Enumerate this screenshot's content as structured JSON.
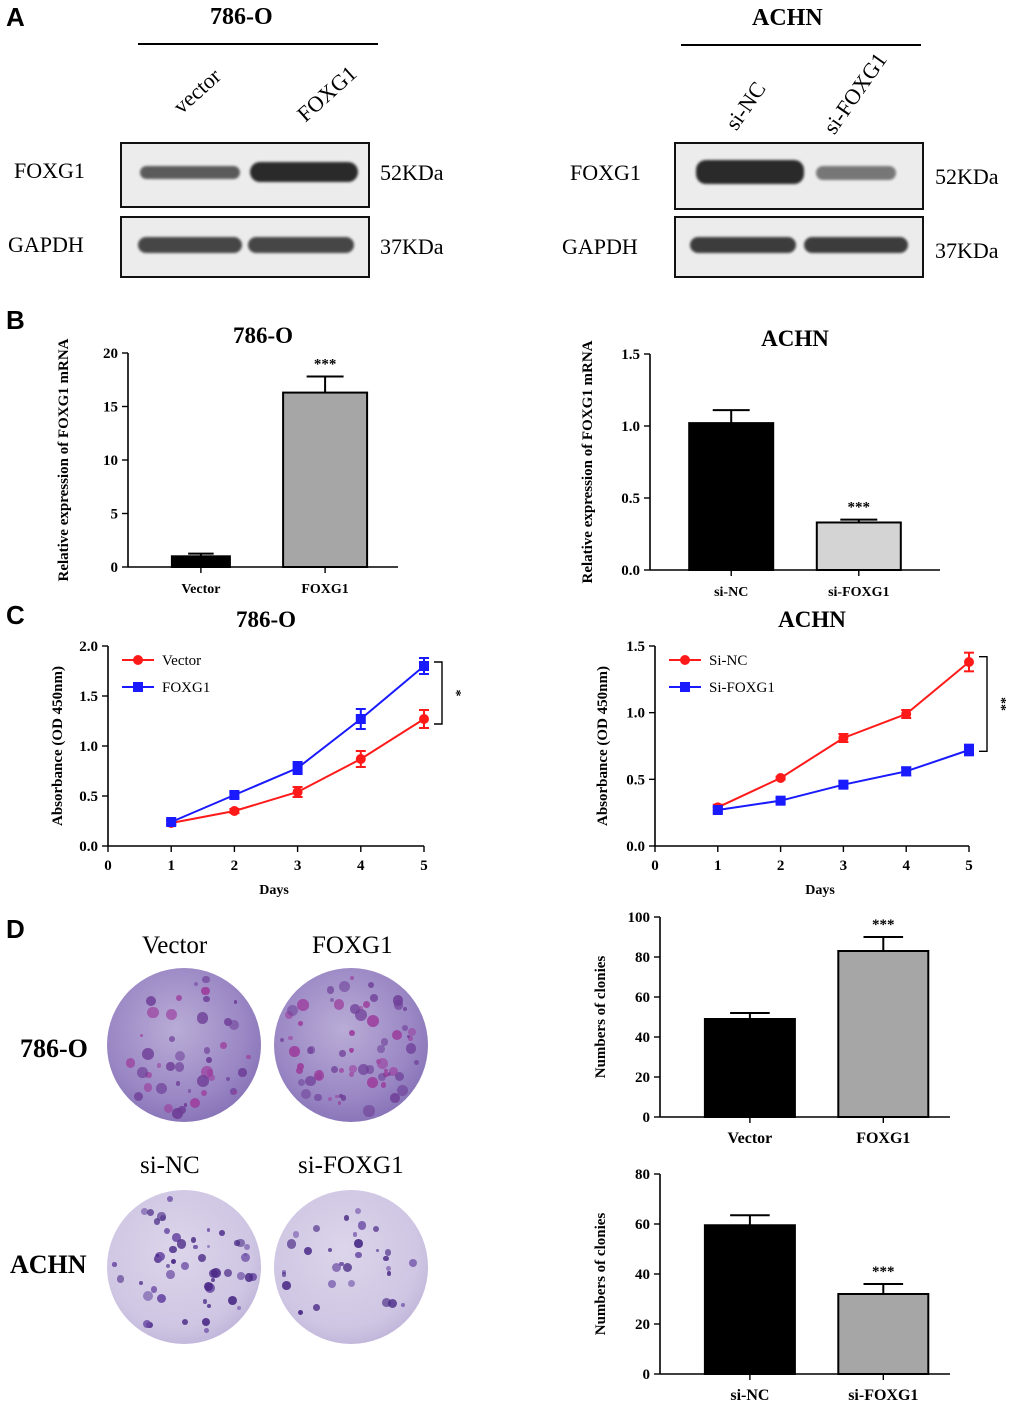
{
  "panels": {
    "A": "A",
    "B": "B",
    "C": "C",
    "D": "D"
  },
  "panel_a": {
    "left": {
      "cell_line": "786-O",
      "lanes": [
        "vector",
        "FOXG1"
      ],
      "rows": [
        {
          "label": "FOXG1",
          "size": "52KDa",
          "intensity": [
            0.55,
            1.0
          ]
        },
        {
          "label": "GAPDH",
          "size": "37KDa",
          "intensity": [
            0.8,
            0.8
          ]
        }
      ]
    },
    "right": {
      "cell_line": "ACHN",
      "lanes": [
        "si-NC",
        "si-FOXG1"
      ],
      "rows": [
        {
          "label": "FOXG1",
          "size": "52KDa",
          "intensity": [
            1.0,
            0.45
          ]
        },
        {
          "label": "GAPDH",
          "size": "37KDa",
          "intensity": [
            0.85,
            0.85
          ]
        }
      ]
    }
  },
  "panel_d_images": {
    "rows": [
      "786-O",
      "ACHN"
    ],
    "cols_top": [
      "Vector",
      "FOXG1"
    ],
    "cols_bottom": [
      "si-NC",
      "si-FOXG1"
    ],
    "colony_density": [
      [
        0.5,
        0.85
      ],
      [
        0.6,
        0.3
      ]
    ]
  },
  "chart_data": [
    {
      "id": "b1",
      "type": "bar",
      "title": "786-O",
      "ylabel": "Relative expression of FOXG1 mRNA",
      "xlabel": "",
      "ylim": [
        0,
        20
      ],
      "yticks": [
        0,
        5,
        10,
        15,
        20
      ],
      "categories": [
        "Vector",
        "FOXG1"
      ],
      "values": [
        1.0,
        16.3
      ],
      "errors": [
        0.25,
        1.5
      ],
      "colors": [
        "#000000",
        "#a6a6a6"
      ],
      "significance": [
        "",
        "***"
      ]
    },
    {
      "id": "b2",
      "type": "bar",
      "title": "ACHN",
      "ylabel": "Relative expression of FOXG1 mRNA",
      "xlabel": "",
      "ylim": [
        0,
        1.5
      ],
      "yticks": [
        "0.0",
        "0.5",
        "1.0",
        "1.5"
      ],
      "categories": [
        "si-NC",
        "si-FOXG1"
      ],
      "values": [
        1.02,
        0.33
      ],
      "errors": [
        0.09,
        0.02
      ],
      "colors": [
        "#000000",
        "#d4d4d4"
      ],
      "significance": [
        "",
        "***"
      ]
    },
    {
      "id": "c1",
      "type": "line",
      "title": "786-O",
      "ylabel": "Absorbance (OD 450nm)",
      "xlabel": "Days",
      "xlim": [
        0,
        5
      ],
      "ylim": [
        0,
        2.0
      ],
      "xticks": [
        0,
        1,
        2,
        3,
        4,
        5
      ],
      "yticks": [
        "0.0",
        "0.5",
        "1.0",
        "1.5",
        "2.0"
      ],
      "legend_position": "top-left",
      "significance": "*",
      "series": [
        {
          "name": "Vector",
          "color": "#ff1a1a",
          "marker": "circle",
          "x": [
            1,
            2,
            3,
            4,
            5
          ],
          "y": [
            0.23,
            0.35,
            0.54,
            0.87,
            1.27
          ],
          "err": [
            0.02,
            0.02,
            0.05,
            0.08,
            0.09
          ]
        },
        {
          "name": "FOXG1",
          "color": "#1a1aff",
          "marker": "square",
          "x": [
            1,
            2,
            3,
            4,
            5
          ],
          "y": [
            0.24,
            0.51,
            0.78,
            1.27,
            1.8
          ],
          "err": [
            0.02,
            0.03,
            0.06,
            0.1,
            0.08
          ]
        }
      ]
    },
    {
      "id": "c2",
      "type": "line",
      "title": "ACHN",
      "ylabel": "Absorbance (OD 450nm)",
      "xlabel": "Days",
      "xlim": [
        0,
        5
      ],
      "ylim": [
        0,
        1.5
      ],
      "xticks": [
        0,
        1,
        2,
        3,
        4,
        5
      ],
      "yticks": [
        "0.0",
        "0.5",
        "1.0",
        "1.5"
      ],
      "legend_position": "top-left",
      "significance": "**",
      "series": [
        {
          "name": "Si-NC",
          "color": "#ff1a1a",
          "marker": "circle",
          "x": [
            1,
            2,
            3,
            4,
            5
          ],
          "y": [
            0.29,
            0.51,
            0.81,
            0.99,
            1.38
          ],
          "err": [
            0.02,
            0.01,
            0.03,
            0.03,
            0.07
          ]
        },
        {
          "name": "Si-FOXG1",
          "color": "#1a1aff",
          "marker": "square",
          "x": [
            1,
            2,
            3,
            4,
            5
          ],
          "y": [
            0.27,
            0.34,
            0.46,
            0.56,
            0.72
          ],
          "err": [
            0.02,
            0.02,
            0.02,
            0.03,
            0.04
          ]
        }
      ]
    },
    {
      "id": "d1",
      "type": "bar",
      "title": "",
      "ylabel": "Numbers of clonies",
      "xlabel": "",
      "ylim": [
        0,
        100
      ],
      "yticks": [
        0,
        20,
        40,
        60,
        80,
        100
      ],
      "categories": [
        "Vector",
        "FOXG1"
      ],
      "values": [
        49,
        83
      ],
      "errors": [
        3,
        7
      ],
      "colors": [
        "#000000",
        "#a6a6a6"
      ],
      "significance": [
        "",
        "***"
      ]
    },
    {
      "id": "d2",
      "type": "bar",
      "title": "",
      "ylabel": "Numbers of clonies",
      "xlabel": "",
      "ylim": [
        0,
        80
      ],
      "yticks": [
        0,
        20,
        40,
        60,
        80
      ],
      "categories": [
        "si-NC",
        "si-FOXG1"
      ],
      "values": [
        59.5,
        32
      ],
      "errors": [
        4,
        4
      ],
      "colors": [
        "#000000",
        "#a6a6a6"
      ],
      "significance": [
        "",
        "***"
      ]
    }
  ]
}
